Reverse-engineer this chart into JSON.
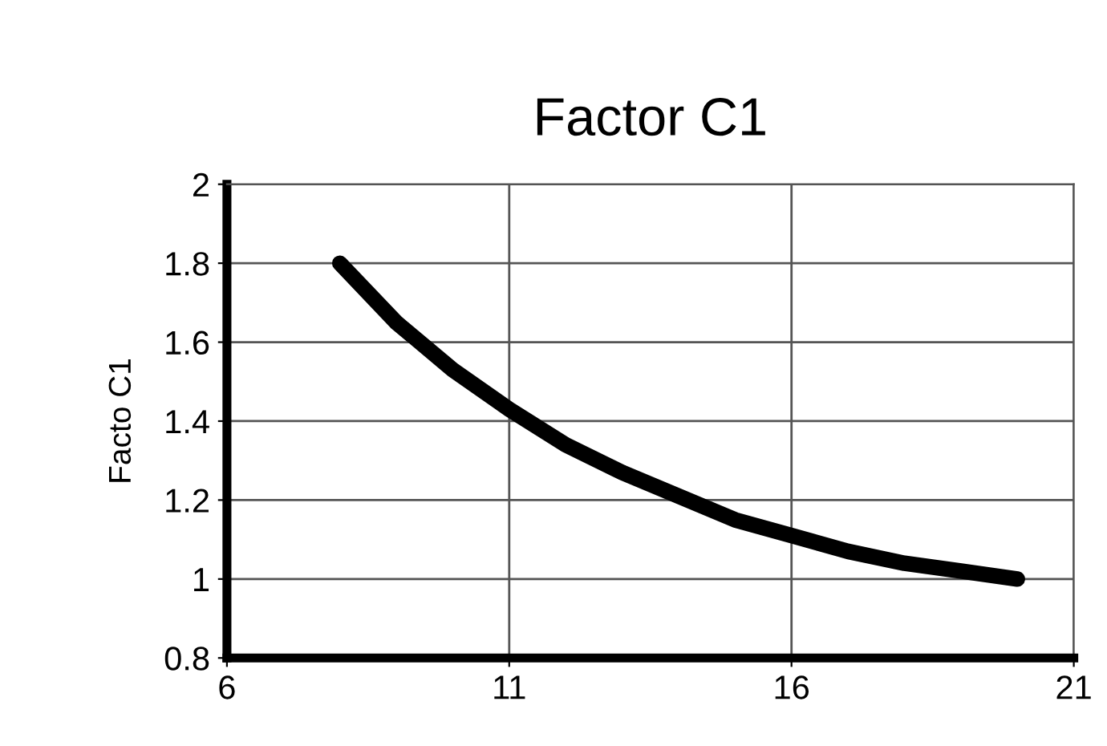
{
  "chart_data": {
    "type": "line",
    "title": "Factor C1",
    "ylabel": "Facto C1",
    "x": [
      8,
      9,
      10,
      11,
      12,
      13,
      14,
      15,
      16,
      17,
      18,
      19,
      20
    ],
    "series": [
      {
        "color": "#000000",
        "values": [
          1.8,
          1.65,
          1.53,
          1.43,
          1.34,
          1.27,
          1.21,
          1.15,
          1.11,
          1.07,
          1.04,
          1.02,
          1.0
        ]
      }
    ],
    "xlim": [
      6,
      21
    ],
    "xticks": [
      6,
      11,
      16,
      21
    ],
    "ylim": [
      0.8,
      2
    ],
    "yticks": [
      0.8,
      1,
      1.2,
      1.4,
      1.6,
      1.8,
      2
    ],
    "grid": true,
    "marker": "none",
    "line_style": "solid"
  }
}
